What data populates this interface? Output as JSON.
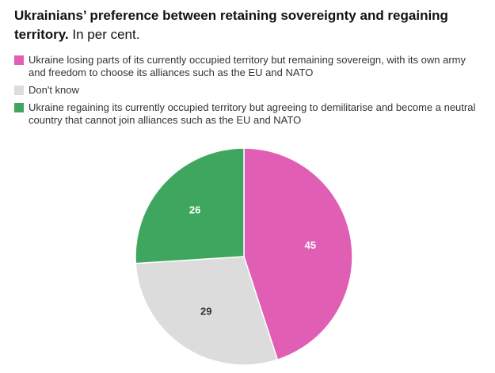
{
  "chart_data": {
    "type": "pie",
    "title": "Ukrainians’ preference between retaining sovereignty and regaining territory.",
    "subtitle": "In per cent.",
    "categories": [
      "Ukraine losing parts of its currently occupied territory but remaining sovereign, with its own army and freedom to choose its alliances such as the EU and NATO",
      "Don't know",
      "Ukraine regaining its currently occupied territory but agreeing to demilitarise and become a neutral country that cannot join alliances such as the EU and NATO"
    ],
    "values": [
      45,
      29,
      26
    ],
    "colors": [
      "#e05fb4",
      "#dcdcdc",
      "#3fa660"
    ],
    "label_colors": [
      "#ffffff",
      "#333333",
      "#ffffff"
    ]
  }
}
